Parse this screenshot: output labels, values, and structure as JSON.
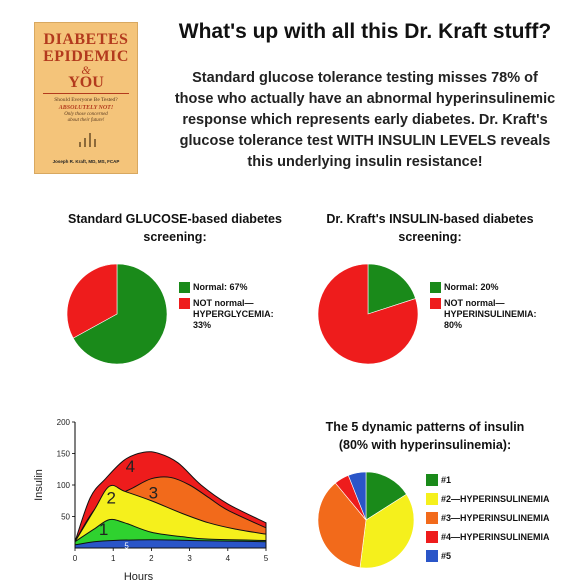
{
  "book_cover": {
    "title_line1": "DIABETES",
    "title_line2": "EPIDEMIC",
    "ampersand": "&",
    "title_line3": "YOU",
    "question": "Should Everyone Be Tested?",
    "answer": "ABSOLUTELY NOT!",
    "subtitle_line1": "Only those concerned",
    "subtitle_line2": "about their future!",
    "author": "Joseph R. Kraft, MD, MS, FCAP",
    "colors": {
      "background": "#f4c47a",
      "title": "#b33a1d"
    }
  },
  "header": {
    "title": "What's up with all this Dr. Kraft stuff?",
    "intro_lines": [
      "Standard glucose tolerance testing misses 78% of",
      "those who actually have an abnormal hyperinsulinemic",
      "response which represents early diabetes.  Dr. Kraft's",
      "glucose tolerance test WITH INSULIN LEVELS reveals",
      "this underlying insulin resistance!"
    ]
  },
  "chart_data": [
    {
      "type": "pie",
      "title_lines": [
        "Standard GLUCOSE-based diabetes",
        "screening:"
      ],
      "slices": [
        {
          "label": "Normal: 67%",
          "value": 67,
          "color": "#1a8a1a"
        },
        {
          "label": "NOT normal— HYPERGLYCEMIA: 33%",
          "label_lines": [
            "NOT normal—",
            "HYPERGLYCEMIA:",
            "33%"
          ],
          "value": 33,
          "color": "#ee1c1c"
        }
      ]
    },
    {
      "type": "pie",
      "title_lines": [
        "Dr. Kraft's INSULIN-based diabetes",
        "screening:"
      ],
      "slices": [
        {
          "label": "Normal: 20%",
          "value": 20,
          "color": "#1a8a1a"
        },
        {
          "label": "NOT normal— HYPERINSULINEMIA: 80%",
          "label_lines": [
            "NOT normal—",
            "HYPERINSULINEMIA:",
            "80%"
          ],
          "value": 80,
          "color": "#ee1c1c"
        }
      ]
    },
    {
      "type": "area",
      "xlabel": "Hours",
      "ylabel": "Insulin",
      "xlim": [
        0,
        5
      ],
      "ylim": [
        0,
        200
      ],
      "x_ticks": [
        "0",
        "1",
        "2",
        "3",
        "4",
        "5"
      ],
      "y_ticks": [
        "50",
        "100",
        "150",
        "200"
      ],
      "series": [
        {
          "name": "4",
          "color": "#ee1c1c",
          "points": [
            [
              0,
              10
            ],
            [
              0.4,
              80
            ],
            [
              0.8,
              110
            ],
            [
              1.3,
              140
            ],
            [
              1.8,
              152
            ],
            [
              2.2,
              150
            ],
            [
              2.7,
              135
            ],
            [
              3.3,
              100
            ],
            [
              4,
              70
            ],
            [
              5,
              40
            ]
          ],
          "label_at": [
            1.45,
            130
          ]
        },
        {
          "name": "3",
          "color": "#f26a1b",
          "points": [
            [
              0,
              10
            ],
            [
              0.5,
              60
            ],
            [
              1,
              80
            ],
            [
              1.5,
              95
            ],
            [
              2,
              110
            ],
            [
              2.5,
              112
            ],
            [
              3,
              100
            ],
            [
              3.5,
              80
            ],
            [
              4,
              60
            ],
            [
              5,
              32
            ]
          ],
          "label_at": [
            2.05,
            88
          ]
        },
        {
          "name": "2",
          "color": "#f5f01c",
          "points": [
            [
              0,
              10
            ],
            [
              0.5,
              60
            ],
            [
              0.9,
              98
            ],
            [
              1.3,
              90
            ],
            [
              2,
              75
            ],
            [
              2.8,
              55
            ],
            [
              3.5,
              40
            ],
            [
              4.2,
              30
            ],
            [
              5,
              22
            ]
          ],
          "label_at": [
            0.95,
            80
          ]
        },
        {
          "name": "1",
          "color": "#2fd22f",
          "points": [
            [
              0,
              10
            ],
            [
              0.5,
              30
            ],
            [
              0.9,
              45
            ],
            [
              1.3,
              40
            ],
            [
              2,
              25
            ],
            [
              2.8,
              18
            ],
            [
              3.5,
              14
            ],
            [
              5,
              12
            ]
          ],
          "label_at": [
            0.75,
            30
          ]
        },
        {
          "name": "5",
          "color": "#2a55c8",
          "points": [
            [
              0,
              5
            ],
            [
              0.5,
              10
            ],
            [
              1,
              12
            ],
            [
              2,
              13
            ],
            [
              3,
              12
            ],
            [
              4,
              11
            ],
            [
              5,
              10
            ]
          ],
          "label_at": [
            1.35,
            4
          ]
        }
      ]
    },
    {
      "type": "pie",
      "title_lines": [
        "The 5 dynamic patterns of insulin",
        "(80% with hyperinsulinemia):"
      ],
      "slices": [
        {
          "label": "#1",
          "value": 16,
          "color": "#1a8a1a"
        },
        {
          "label": "#2—HYPERINSULINEMIA",
          "value": 36,
          "color": "#f5f01c"
        },
        {
          "label": "#3—HYPERINSULINEMIA",
          "value": 37,
          "color": "#f26a1b"
        },
        {
          "label": "#4—HYPERINSULINEMIA",
          "value": 5,
          "color": "#ee1c1c"
        },
        {
          "label": "#5",
          "value": 6,
          "color": "#2a55c8"
        }
      ]
    }
  ]
}
